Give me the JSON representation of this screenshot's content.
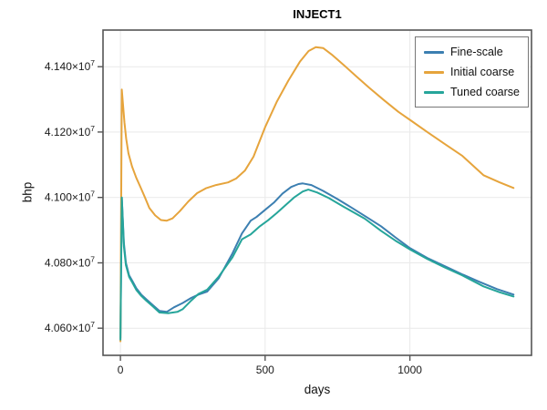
{
  "chart_data": {
    "type": "line",
    "title": "INJECT1",
    "xlabel": "days",
    "ylabel": "bhp",
    "xlim": [
      -60,
      1420
    ],
    "ylim": [
      40517000,
      41512000
    ],
    "grid": true,
    "legend_position": "top-right",
    "x_ticks": [
      {
        "value": 0,
        "label": "0"
      },
      {
        "value": 500,
        "label": "500"
      },
      {
        "value": 1000,
        "label": "1000"
      }
    ],
    "y_ticks": [
      {
        "value": 40600000,
        "mantissa": "4.060×10",
        "exponent": "7"
      },
      {
        "value": 40800000,
        "mantissa": "4.080×10",
        "exponent": "7"
      },
      {
        "value": 41000000,
        "mantissa": "4.100×10",
        "exponent": "7"
      },
      {
        "value": 41200000,
        "mantissa": "4.120×10",
        "exponent": "7"
      },
      {
        "value": 41400000,
        "mantissa": "4.140×10",
        "exponent": "7"
      }
    ],
    "colors": {
      "frame": "#555555",
      "grid": "#e9e9e9",
      "tick_label": "#1a1a1a",
      "legend_border": "#777777",
      "background": "#ffffff"
    },
    "series": [
      {
        "id": "fine-scale",
        "name": "Fine-scale",
        "color": "#3c7fb1",
        "days": [
          0,
          5,
          12,
          19,
          30,
          41,
          55,
          72,
          90,
          113,
          135,
          160,
          185,
          215,
          245,
          270,
          300,
          340,
          387,
          420,
          450,
          470,
          500,
          530,
          560,
          590,
          615,
          630,
          660,
          700,
          750,
          800,
          850,
          900,
          950,
          1000,
          1060,
          1120,
          1180,
          1240,
          1300,
          1358
        ],
        "bhp": [
          40570000,
          41000000,
          40860000,
          40800000,
          40762000,
          40745000,
          40722000,
          40703000,
          40688000,
          40670000,
          40653000,
          40650000,
          40664000,
          40677000,
          40693000,
          40703000,
          40712000,
          40753000,
          40829000,
          40890000,
          40929000,
          40940000,
          40962000,
          40984000,
          41012000,
          41032000,
          41041000,
          41043000,
          41038000,
          41020000,
          40995000,
          40968000,
          40940000,
          40912000,
          40878000,
          40845000,
          40815000,
          40790000,
          40765000,
          40742000,
          40720000,
          40703000
        ]
      },
      {
        "id": "initial-coarse",
        "name": "Initial coarse",
        "color": "#e6a43c",
        "days": [
          0,
          5,
          14,
          20,
          28,
          40,
          55,
          70,
          85,
          100,
          120,
          140,
          160,
          180,
          205,
          235,
          265,
          295,
          330,
          372,
          400,
          430,
          460,
          500,
          540,
          580,
          620,
          650,
          675,
          700,
          730,
          770,
          813,
          860,
          910,
          960,
          1002,
          1060,
          1120,
          1180,
          1254,
          1310,
          1358
        ],
        "bhp": [
          40560000,
          41330000,
          41230000,
          41180000,
          41135000,
          41095000,
          41060000,
          41030000,
          41000000,
          40968000,
          40945000,
          40931000,
          40929000,
          40936000,
          40958000,
          40988000,
          41013000,
          41028000,
          41038000,
          41046000,
          41058000,
          41082000,
          41125000,
          41215000,
          41292000,
          41357000,
          41415000,
          41448000,
          41460000,
          41457000,
          41437000,
          41406000,
          41372000,
          41335000,
          41298000,
          41262000,
          41236000,
          41200000,
          41164000,
          41128000,
          41068000,
          41046000,
          41029000
        ]
      },
      {
        "id": "tuned-coarse",
        "name": "Tuned coarse",
        "color": "#26a59a",
        "days": [
          0,
          5,
          12,
          19,
          30,
          41,
          55,
          72,
          90,
          113,
          135,
          165,
          197,
          215,
          245,
          270,
          300,
          340,
          387,
          420,
          450,
          482,
          510,
          540,
          570,
          600,
          630,
          649,
          680,
          720,
          770,
          844,
          900,
          950,
          1002,
          1060,
          1120,
          1180,
          1254,
          1310,
          1358
        ],
        "bhp": [
          40565000,
          41000000,
          40850000,
          40793000,
          40757000,
          40740000,
          40717000,
          40699000,
          40684000,
          40666000,
          40648000,
          40646000,
          40650000,
          40658000,
          40685000,
          40705000,
          40718000,
          40758000,
          40817000,
          40872000,
          40887000,
          40912000,
          40930000,
          40952000,
          40976000,
          41000000,
          41018000,
          41024000,
          41015000,
          40998000,
          40972000,
          40935000,
          40898000,
          40868000,
          40840000,
          40812000,
          40786000,
          40762000,
          40728000,
          40710000,
          40697000
        ]
      }
    ],
    "draw_order": [
      0,
      1,
      2
    ]
  }
}
